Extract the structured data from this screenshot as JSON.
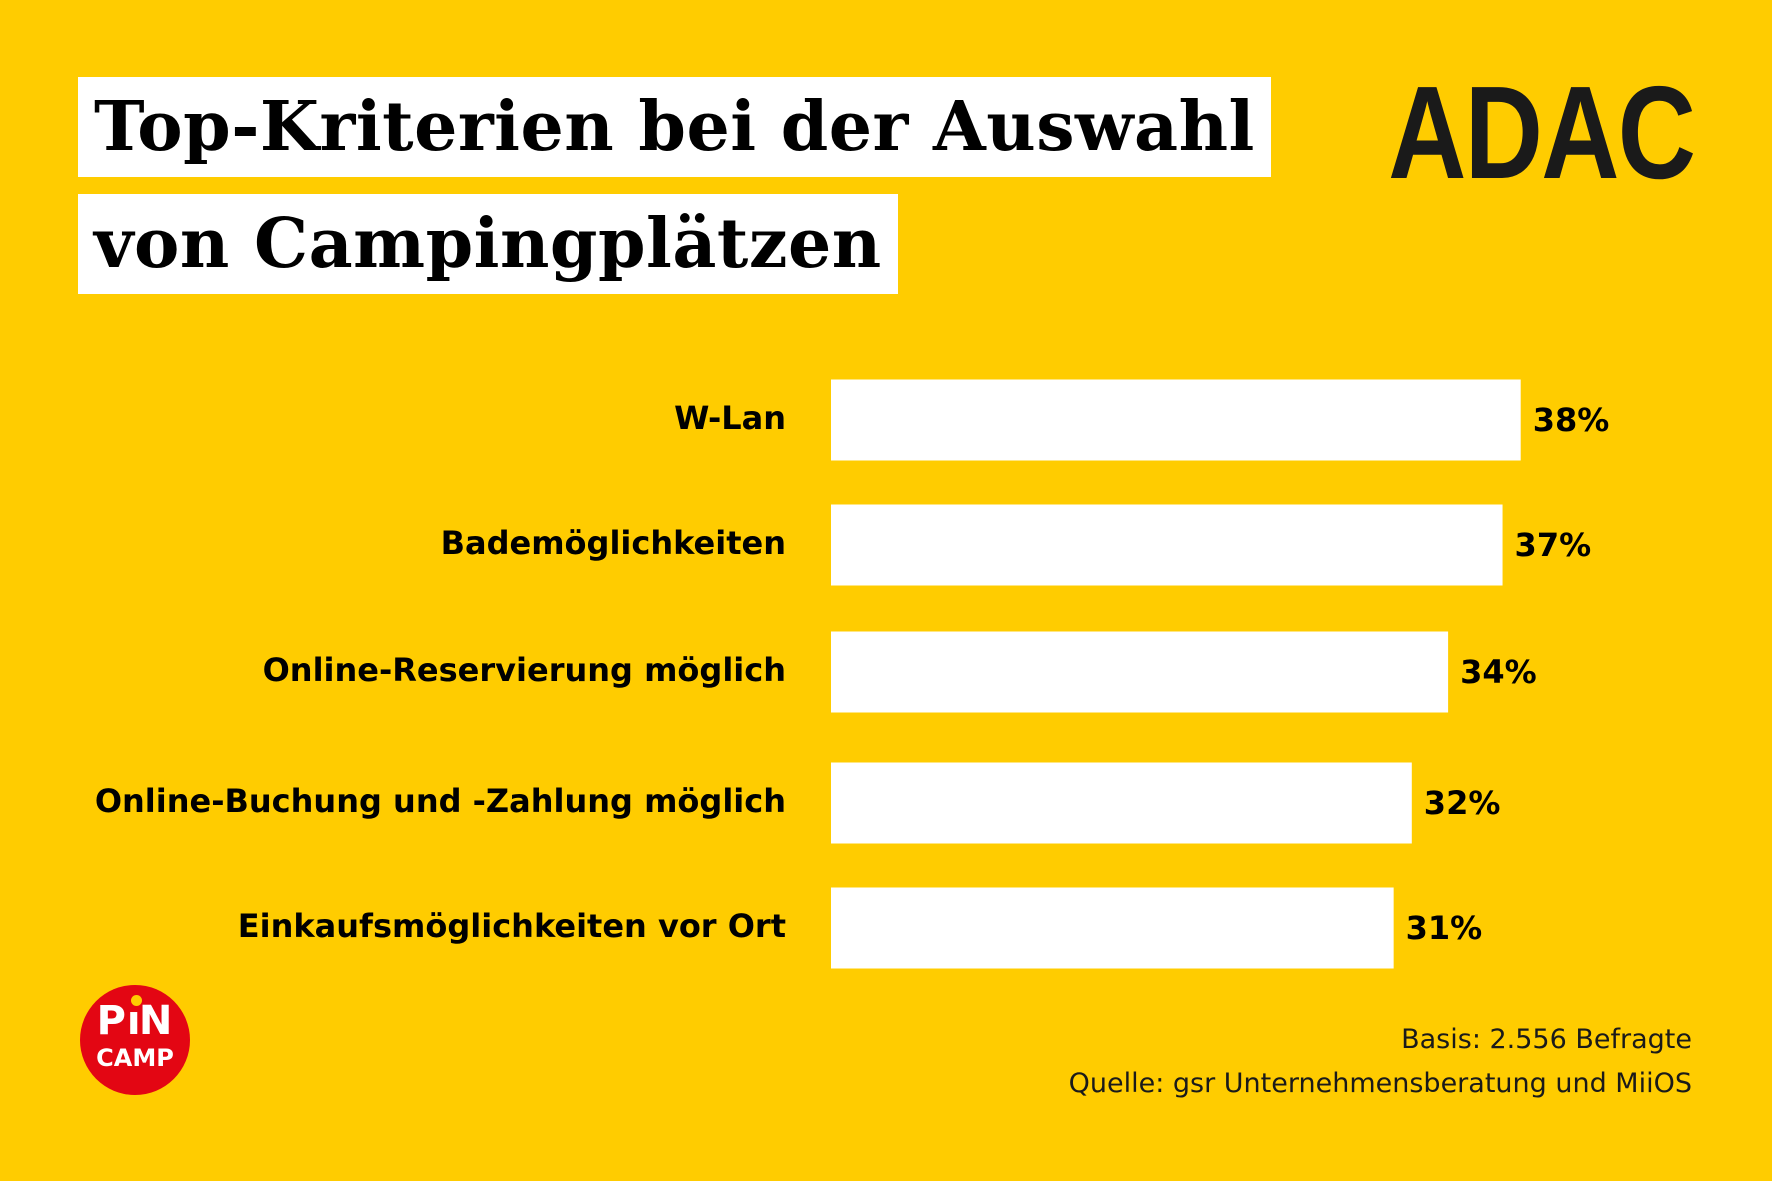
{
  "header": {
    "title_line_1": "Top-Kriterien bei der Auswahl",
    "title_line_2": "von Campingplätzen",
    "brand": "ADAC"
  },
  "chart_data": {
    "type": "bar",
    "orientation": "horizontal",
    "title": "Top-Kriterien bei der Auswahl von Campingplätzen",
    "categories": [
      "W-Lan",
      "Bademöglichkeiten",
      "Online-Reservierung möglich",
      "Online-Buchung und -Zahlung möglich",
      "Einkaufsmöglichkeiten vor Ort"
    ],
    "values": [
      38,
      37,
      34,
      32,
      31
    ],
    "data_labels": [
      "38%",
      "37%",
      "34%",
      "32%",
      "31%"
    ],
    "unit": "%",
    "grid": false,
    "legend": "none",
    "colors": {
      "bar": "#FFFFFF",
      "background": "#FFCC00",
      "text": "#000000"
    }
  },
  "footer": {
    "basis": "Basis: 2.556 Befragte",
    "source": "Quelle: gsr Unternehmensberatung und MiiOS"
  },
  "partner_logo": {
    "line_1": "PIN",
    "line_2": "CAMP",
    "color": "#E30613",
    "icon": "pincamp-logo"
  }
}
